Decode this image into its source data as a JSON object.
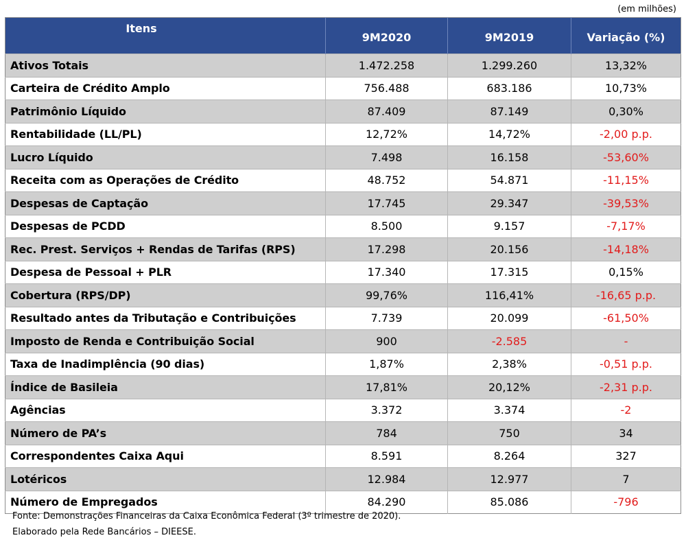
{
  "unit_note": "(em milhões)",
  "header": {
    "items": "Itens",
    "col_a": "9M2020",
    "col_b": "9M2019",
    "col_c": "Variação (%)"
  },
  "rows": [
    {
      "item": "Ativos Totais",
      "a": "1.472.258",
      "b": "1.299.260",
      "c": "13,32%"
    },
    {
      "item": "Carteira de Crédito Amplo",
      "a": "756.488",
      "b": "683.186",
      "c": "10,73%"
    },
    {
      "item": "Patrimônio Líquido",
      "a": "87.409",
      "b": "87.149",
      "c": "0,30%"
    },
    {
      "item": "Rentabilidade (LL/PL)",
      "a": "12,72%",
      "b": "14,72%",
      "c": "-2,00 p.p."
    },
    {
      "item": "Lucro Líquido",
      "a": "7.498",
      "b": "16.158",
      "c": "-53,60%"
    },
    {
      "item": "Receita com as Operações de Crédito",
      "a": "48.752",
      "b": "54.871",
      "c": "-11,15%"
    },
    {
      "item": "Despesas de Captação",
      "a": "17.745",
      "b": "29.347",
      "c": "-39,53%"
    },
    {
      "item": "Despesas de PCDD",
      "a": "8.500",
      "b": "9.157",
      "c": "-7,17%"
    },
    {
      "item": "Rec. Prest. Serviços + Rendas de Tarifas (RPS)",
      "a": "17.298",
      "b": "20.156",
      "c": "-14,18%"
    },
    {
      "item": "Despesa de Pessoal + PLR",
      "a": "17.340",
      "b": "17.315",
      "c": "0,15%"
    },
    {
      "item": "Cobertura (RPS/DP)",
      "a": "99,76%",
      "b": "116,41%",
      "c": "-16,65 p.p."
    },
    {
      "item": "Resultado antes da Tributação e Contribuições",
      "a": "7.739",
      "b": "20.099",
      "c": "-61,50%"
    },
    {
      "item": "Imposto de Renda e Contribuição Social",
      "a": "900",
      "b": "-2.585",
      "c": "-"
    },
    {
      "item": "Taxa de Inadimplência (90 dias)",
      "a": "1,87%",
      "b": "2,38%",
      "c": "-0,51 p.p."
    },
    {
      "item": "Índice de Basileia",
      "a": "17,81%",
      "b": "20,12%",
      "c": "-2,31 p.p."
    },
    {
      "item": "Agências",
      "a": "3.372",
      "b": "3.374",
      "c": "-2"
    },
    {
      "item": "Número de PA’s",
      "a": "784",
      "b": "750",
      "c": "34"
    },
    {
      "item": "Correspondentes Caixa Aqui",
      "a": "8.591",
      "b": "8.264",
      "c": "327"
    },
    {
      "item": "Lotéricos",
      "a": "12.984",
      "b": "12.977",
      "c": "7"
    },
    {
      "item": "Número de Empregados",
      "a": "84.290",
      "b": "85.086",
      "c": "-796"
    }
  ],
  "footnote": {
    "line1": "Fonte: Demonstrações Financeiras da Caixa Econômica Federal (3º trimestre de 2020).",
    "line2": "Elaborado pela Rede Bancários – DIEESE."
  },
  "colors": {
    "header_bg": "#2e4d91",
    "shaded_row": "#cfcfcf",
    "negative": "#e21b1b"
  }
}
